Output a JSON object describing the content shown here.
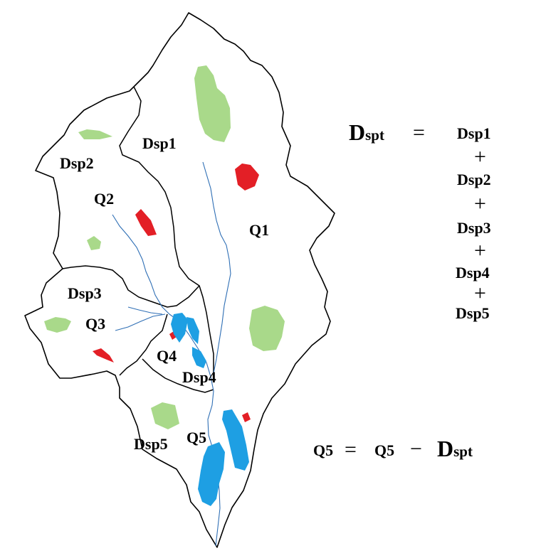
{
  "map": {
    "sub_basin_labels": {
      "dsp1": "Dsp1",
      "dsp2": "Dsp2",
      "dsp3": "Dsp3",
      "dsp4": "Dsp4",
      "dsp5": "Dsp5"
    },
    "flow_labels": {
      "q1": "Q1",
      "q2": "Q2",
      "q3": "Q3",
      "q4": "Q4",
      "q5": "Q5"
    },
    "legend_colors": {
      "green_area": "#a9d98a",
      "urban_area": "#e31f26",
      "lake": "#1e9fe3",
      "river": "#2f6fb5"
    }
  },
  "equation_total": {
    "lhs_main": "D",
    "lhs_sub": "spt",
    "equals": "=",
    "terms": [
      "Dsp1",
      "Dsp2",
      "Dsp3",
      "Dsp4",
      "Dsp5"
    ],
    "plus": "+"
  },
  "equation_q5": {
    "lhs": "Q5",
    "equals": "=",
    "rhs_first": "Q5",
    "minus": "−",
    "rhs_main": "D",
    "rhs_sub": "spt"
  }
}
